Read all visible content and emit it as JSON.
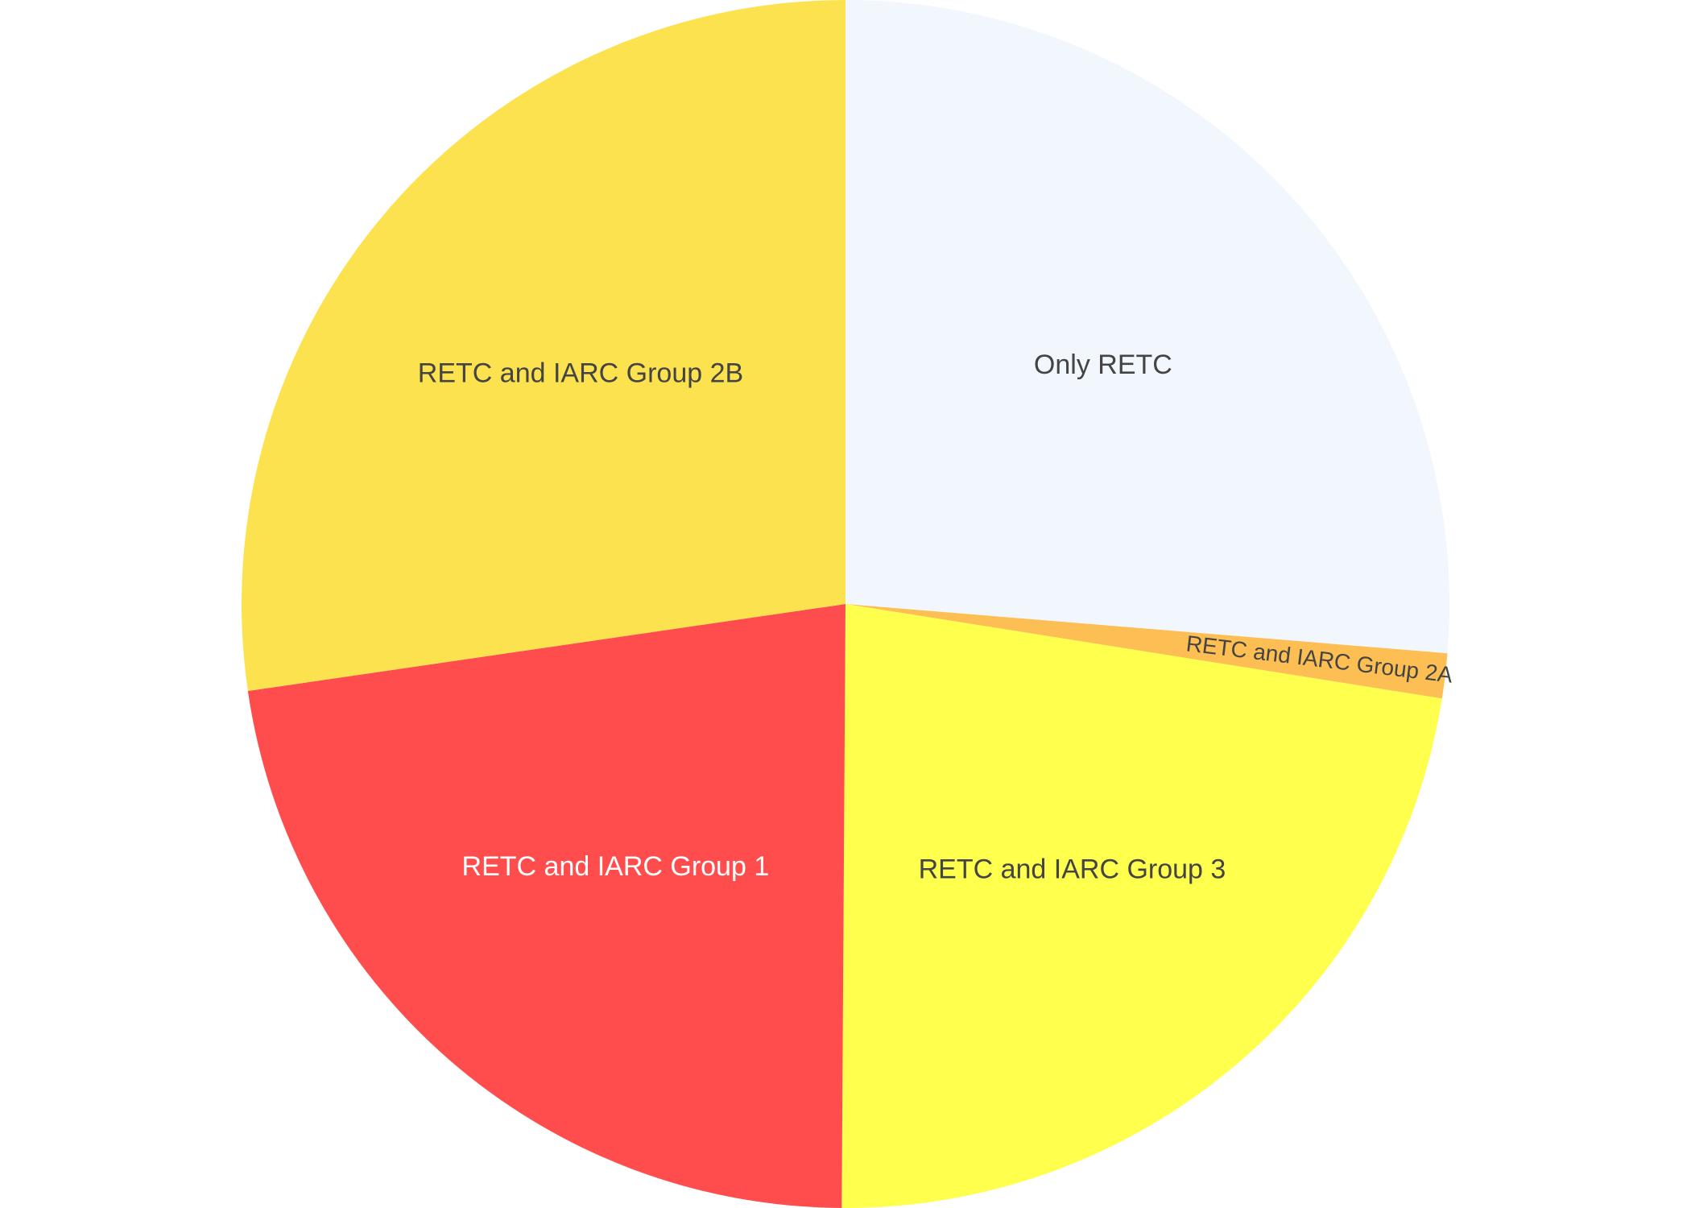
{
  "chart_data": {
    "type": "pie",
    "title": "",
    "start_angle_deg": 90,
    "direction": "clockwise",
    "slices": [
      {
        "label": "Only RETC",
        "value": 26.3,
        "color": "#F2F7FD",
        "text_color": "#444444"
      },
      {
        "label": "RETC and IARC Group 2A",
        "value": 1.2,
        "color": "#FDBE53",
        "text_color": "#444444"
      },
      {
        "label": "RETC and IARC Group 3",
        "value": 22.6,
        "color": "#FFFF4D",
        "text_color": "#444444"
      },
      {
        "label": "RETC and IARC Group 1",
        "value": 22.6,
        "color": "#FF4D4D",
        "text_color": "#FFFFFF"
      },
      {
        "label": "RETC and IARC Group 2B",
        "value": 27.3,
        "color": "#FDE250",
        "text_color": "#444444"
      }
    ]
  }
}
